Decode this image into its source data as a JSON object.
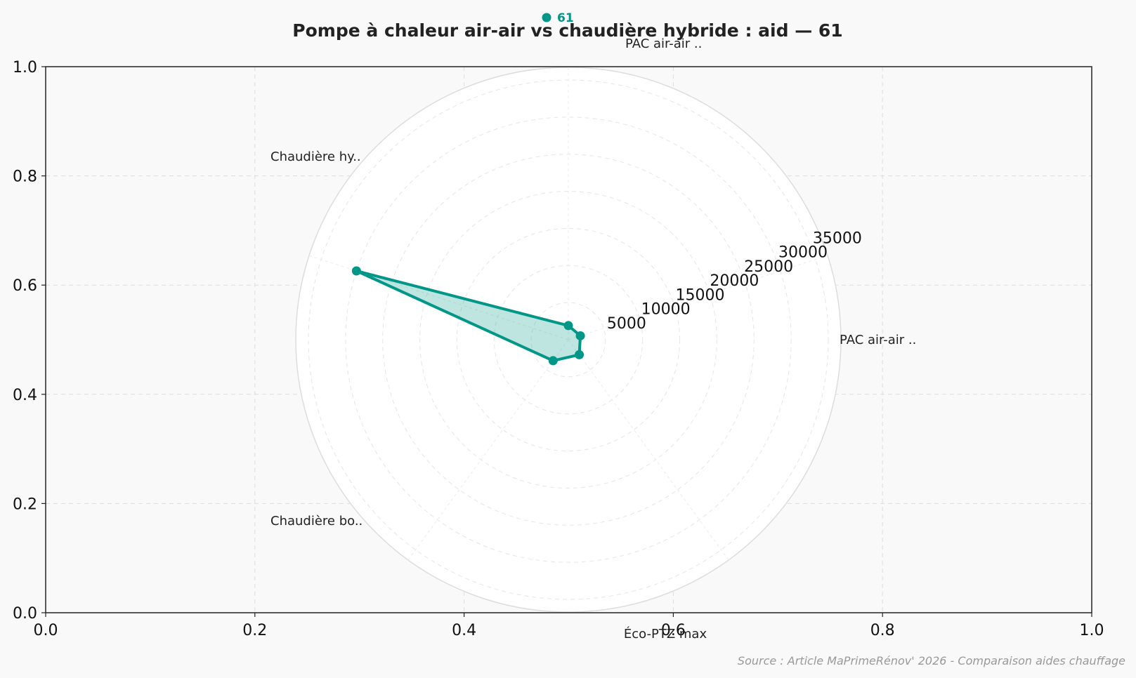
{
  "chart_data": {
    "type": "radar",
    "title": "Pompe à chaleur air-air vs chaudière hybride : aid — 61",
    "categories": [
      "PAC air-air ..",
      "PAC air-air ..",
      "Chaudière hy..",
      "Chaudière bo..",
      "Éco-PTZ max"
    ],
    "series": [
      {
        "name": "61",
        "color": "#009688",
        "values": [
          1900,
          1700,
          2500,
          3500,
          30000
        ]
      }
    ],
    "rlim": [
      0,
      35000
    ],
    "radial_ticks": [
      5000,
      10000,
      15000,
      20000,
      25000,
      30000,
      35000
    ],
    "axes": {
      "x_ticks": [
        "0.0",
        "0.2",
        "0.4",
        "0.6",
        "0.8",
        "1.0"
      ],
      "y_ticks": [
        "0.0",
        "0.2",
        "0.4",
        "0.6",
        "0.8",
        "1.0"
      ]
    },
    "grid": true,
    "legend_position": "top-center",
    "source": "Source : Article MaPrimeRénov' 2026 - Comparaison aides chauffage"
  }
}
